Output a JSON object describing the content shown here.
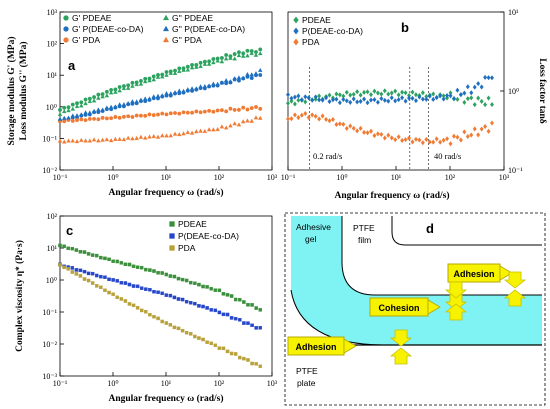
{
  "colors": {
    "PDEAE": "#2ca25f",
    "P(DEAE-co-DA)": "#1f6fc0",
    "PDA": "#f07a33",
    "PDA_c": "#b8a13a",
    "PDEAE_c": "#3a8f3a",
    "P(DEAE-co-DA)_c": "#2546c9",
    "gel": "#7ff3f3",
    "arrow": "#f6f200"
  },
  "chart_data": [
    {
      "panel": "a",
      "type": "scatter",
      "xscale": "log",
      "yscale": "log",
      "xlim": [
        0.1,
        1000
      ],
      "ylim": [
        0.01,
        1000
      ],
      "xlabel": "Angular frequency ω (rad/s)",
      "ylabel_1": "Storage modulus G' (MPa)",
      "ylabel_2": "Loss modulus G'' (MPa)",
      "xticks": [
        "10⁻¹",
        "10⁰",
        "10¹",
        "10²",
        "10³"
      ],
      "yticks": [
        "10⁻²",
        "10⁻¹",
        "10⁰",
        "10¹",
        "10²",
        "10³"
      ],
      "series": [
        {
          "name": "G' PDEAE",
          "color_key": "PDEAE",
          "marker": "circle",
          "x": [
            0.1,
            1,
            10,
            100,
            300,
            600
          ],
          "y": [
            0.8,
            3.5,
            12,
            35,
            55,
            60
          ]
        },
        {
          "name": "G' P(DEAE-co-DA)",
          "color_key": "P(DEAE-co-DA)",
          "marker": "circle",
          "x": [
            0.1,
            1,
            10,
            100,
            300,
            600
          ],
          "y": [
            0.35,
            0.9,
            2.2,
            5,
            8,
            10
          ]
        },
        {
          "name": "G' PDA",
          "color_key": "PDA",
          "marker": "circle",
          "x": [
            0.1,
            1,
            10,
            100,
            600
          ],
          "y": [
            0.35,
            0.45,
            0.6,
            0.75,
            0.95
          ]
        },
        {
          "name": "G'' PDEAE",
          "color_key": "PDEAE",
          "marker": "triangle",
          "x": [
            0.1,
            1,
            10,
            100,
            300,
            600
          ],
          "y": [
            0.6,
            2.8,
            10,
            28,
            42,
            48
          ]
        },
        {
          "name": "G'' P(DEAE-co-DA)",
          "color_key": "P(DEAE-co-DA)",
          "marker": "triangle",
          "x": [
            0.1,
            1,
            10,
            100,
            300,
            600
          ],
          "y": [
            0.4,
            1,
            2.5,
            5.5,
            9,
            13
          ]
        },
        {
          "name": "G'' PDA",
          "color_key": "PDA",
          "marker": "triangle",
          "x": [
            0.1,
            1,
            10,
            100,
            600
          ],
          "y": [
            0.08,
            0.09,
            0.12,
            0.2,
            0.45
          ]
        }
      ]
    },
    {
      "panel": "b",
      "type": "scatter",
      "xscale": "log",
      "yscale": "log",
      "xlim": [
        0.1,
        1000
      ],
      "ylim": [
        0.1,
        10
      ],
      "xlabel": "Angular frequency ω (rad/s)",
      "ylabel": "Loss factor tanδ",
      "xticks": [
        "10⁻¹",
        "10⁰",
        "10¹",
        "10²",
        "10³"
      ],
      "yticks": [
        "10⁻¹",
        "10⁰",
        "10¹"
      ],
      "series": [
        {
          "name": "PDEAE",
          "color_key": "PDEAE",
          "marker": "diamond",
          "x": [
            0.1,
            0.3,
            1,
            3,
            10,
            30,
            100,
            300,
            600
          ],
          "y": [
            0.7,
            0.8,
            0.9,
            0.95,
            0.95,
            0.9,
            0.85,
            0.75,
            0.72
          ]
        },
        {
          "name": "P(DEAE-co-DA)",
          "color_key": "P(DEAE-co-DA)",
          "marker": "diamond",
          "x": [
            0.1,
            0.3,
            1,
            3,
            10,
            30,
            100,
            300,
            600
          ],
          "y": [
            0.85,
            0.8,
            0.75,
            0.75,
            0.78,
            0.8,
            0.85,
            1.1,
            1.6
          ]
        },
        {
          "name": "PDA",
          "color_key": "PDA",
          "marker": "diamond",
          "x": [
            0.1,
            0.2,
            0.5,
            1,
            3,
            10,
            40,
            100,
            300,
            600
          ],
          "y": [
            0.45,
            0.5,
            0.45,
            0.37,
            0.3,
            0.25,
            0.23,
            0.24,
            0.3,
            0.36
          ]
        }
      ],
      "annotations": {
        "left": "0.2 rad/s",
        "right": "40 rad/s"
      },
      "vlines": [
        0.25,
        18,
        40
      ]
    },
    {
      "panel": "c",
      "type": "scatter",
      "xscale": "log",
      "yscale": "log",
      "xlim": [
        0.1,
        1000
      ],
      "ylim": [
        0.001,
        100
      ],
      "xlabel": "Angular frequency ω (rad/s)",
      "ylabel": "Complex viscosity η* (Pa·s)",
      "xticks": [
        "10⁻¹",
        "10⁰",
        "10¹",
        "10²",
        "10³"
      ],
      "yticks": [
        "10⁻³",
        "10⁻²",
        "10⁻¹",
        "10⁰",
        "10¹",
        "10²"
      ],
      "series": [
        {
          "name": "PDEAE",
          "color_key": "PDEAE_c",
          "marker": "square",
          "x": [
            0.1,
            1,
            10,
            100,
            600
          ],
          "y": [
            12,
            4,
            1.5,
            0.45,
            0.12
          ]
        },
        {
          "name": "P(DEAE-co-DA)",
          "color_key": "P(DEAE-co-DA)_c",
          "marker": "square",
          "x": [
            0.1,
            1,
            10,
            100,
            600
          ],
          "y": [
            3,
            1,
            0.35,
            0.1,
            0.03
          ]
        },
        {
          "name": "PDA",
          "color_key": "PDA_c",
          "marker": "square",
          "x": [
            0.1,
            1,
            10,
            100,
            600
          ],
          "y": [
            3,
            0.35,
            0.045,
            0.008,
            0.002
          ]
        }
      ]
    }
  ],
  "diagram_d": {
    "panel_label": "d",
    "gel_label": "Adhesive gel",
    "film_label": "PTFE film",
    "plate_label": "PTFE plate",
    "callouts": [
      "Adhesion",
      "Cohesion",
      "Adhesion"
    ]
  }
}
